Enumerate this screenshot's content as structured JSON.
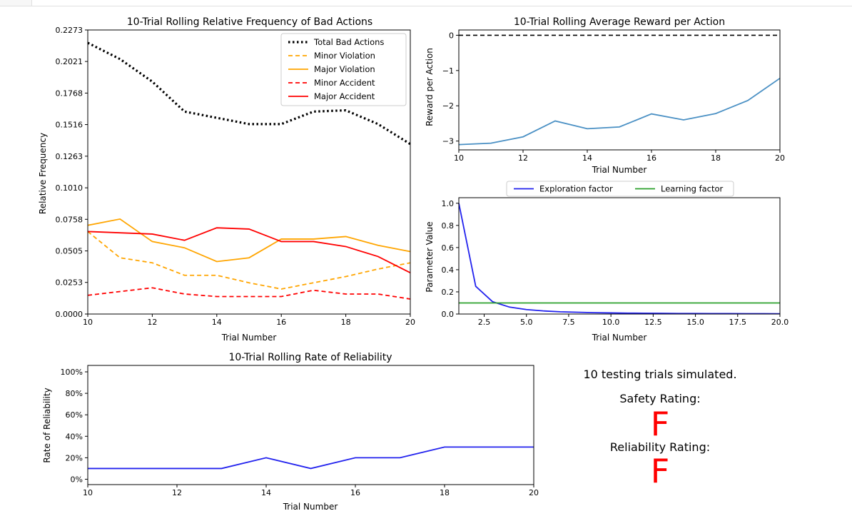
{
  "chart_data": [
    {
      "id": "bad-actions",
      "type": "line",
      "title": "10-Trial Rolling Relative Frequency of Bad Actions",
      "xlabel": "Trial Number",
      "ylabel": "Relative Frequency",
      "xlim": [
        10,
        20
      ],
      "ylim": [
        0,
        0.2273
      ],
      "xticks": [
        "10",
        "12",
        "14",
        "16",
        "18",
        "20"
      ],
      "xtick_values": [
        10,
        12,
        14,
        16,
        18,
        20
      ],
      "yticks": [
        "0.0000",
        "0.0253",
        "0.0505",
        "0.0758",
        "0.1010",
        "0.1263",
        "0.1516",
        "0.1768",
        "0.2021",
        "0.2273"
      ],
      "ytick_values": [
        0,
        0.0253,
        0.0505,
        0.0758,
        0.101,
        0.1263,
        0.1516,
        0.1768,
        0.2021,
        0.2273
      ],
      "legend_position": "top-right",
      "x": [
        10,
        11,
        12,
        13,
        14,
        15,
        16,
        17,
        18,
        19,
        20
      ],
      "series": [
        {
          "name": "Total Bad Actions",
          "color": "#000000",
          "style": "dotted",
          "values": [
            0.217,
            0.204,
            0.186,
            0.162,
            0.157,
            0.152,
            0.152,
            0.162,
            0.163,
            0.152,
            0.136
          ]
        },
        {
          "name": "Minor Violation",
          "color": "#ffa500",
          "style": "dashed",
          "values": [
            0.066,
            0.045,
            0.041,
            0.031,
            0.031,
            0.025,
            0.02,
            0.025,
            0.03,
            0.036,
            0.041
          ]
        },
        {
          "name": "Major Violation",
          "color": "#ffa500",
          "style": "solid",
          "values": [
            0.071,
            0.076,
            0.058,
            0.053,
            0.042,
            0.045,
            0.06,
            0.06,
            0.062,
            0.055,
            0.05
          ]
        },
        {
          "name": "Minor Accident",
          "color": "#ff0000",
          "style": "dashed",
          "values": [
            0.015,
            0.018,
            0.021,
            0.016,
            0.014,
            0.014,
            0.014,
            0.019,
            0.016,
            0.016,
            0.012
          ]
        },
        {
          "name": "Major Accident",
          "color": "#ff0000",
          "style": "solid",
          "values": [
            0.066,
            0.065,
            0.064,
            0.059,
            0.069,
            0.068,
            0.058,
            0.058,
            0.054,
            0.046,
            0.033
          ]
        }
      ]
    },
    {
      "id": "avg-reward",
      "type": "line",
      "title": "10-Trial Rolling Average Reward per Action",
      "xlabel": "Trial Number",
      "ylabel": "Reward per Action",
      "xlim": [
        10,
        20
      ],
      "ylim": [
        -3.25,
        0.15
      ],
      "xticks": [
        "10",
        "12",
        "14",
        "16",
        "18",
        "20"
      ],
      "xtick_values": [
        10,
        12,
        14,
        16,
        18,
        20
      ],
      "yticks": [
        "0",
        "−1",
        "−2",
        "−3"
      ],
      "ytick_values": [
        0,
        -1,
        -2,
        -3
      ],
      "reference_line": {
        "value": 0,
        "color": "#000000",
        "style": "dashed"
      },
      "x": [
        10,
        11,
        12,
        13,
        14,
        15,
        16,
        17,
        18,
        19,
        20
      ],
      "series": [
        {
          "color": "#4a90c4",
          "style": "solid",
          "values": [
            -3.1,
            -3.06,
            -2.88,
            -2.43,
            -2.65,
            -2.6,
            -2.23,
            -2.4,
            -2.22,
            -1.85,
            -1.22
          ]
        }
      ]
    },
    {
      "id": "parameters",
      "type": "line",
      "title": "",
      "xlabel": "Trial Number",
      "ylabel": "Parameter Value",
      "xlim": [
        1,
        20
      ],
      "ylim": [
        0,
        1.05
      ],
      "xticks": [
        "2.5",
        "5.0",
        "7.5",
        "10.0",
        "12.5",
        "15.0",
        "17.5",
        "20.0"
      ],
      "xtick_values": [
        2.5,
        5,
        7.5,
        10,
        12.5,
        15,
        17.5,
        20
      ],
      "yticks": [
        "0.0",
        "0.2",
        "0.4",
        "0.6",
        "0.8",
        "1.0"
      ],
      "ytick_values": [
        0,
        0.2,
        0.4,
        0.6,
        0.8,
        1.0
      ],
      "legend_position": "top-center",
      "x": [
        1,
        2,
        3,
        4,
        5,
        6,
        7,
        8,
        9,
        10,
        11,
        12,
        13,
        14,
        15,
        16,
        17,
        18,
        19,
        20
      ],
      "series": [
        {
          "name": "Exploration factor",
          "color": "#2222ee",
          "style": "solid",
          "values": [
            1.0,
            0.25,
            0.111,
            0.0625,
            0.04,
            0.028,
            0.02,
            0.016,
            0.012,
            0.01,
            0.008,
            0.007,
            0.006,
            0.005,
            0.0044,
            0.0039,
            0.0035,
            0.0031,
            0.0028,
            0.0025
          ]
        },
        {
          "name": "Learning factor",
          "color": "#2ca02c",
          "style": "solid",
          "values": [
            0.1,
            0.1,
            0.1,
            0.1,
            0.1,
            0.1,
            0.1,
            0.1,
            0.1,
            0.1,
            0.1,
            0.1,
            0.1,
            0.1,
            0.1,
            0.1,
            0.1,
            0.1,
            0.1,
            0.1
          ]
        }
      ]
    },
    {
      "id": "reliability",
      "type": "line",
      "title": "10-Trial Rolling Rate of Reliability",
      "xlabel": "Trial Number",
      "ylabel": "Rate of Reliability",
      "xlim": [
        10,
        20
      ],
      "ylim": [
        -5,
        106
      ],
      "xticks": [
        "10",
        "12",
        "14",
        "16",
        "18",
        "20"
      ],
      "xtick_values": [
        10,
        12,
        14,
        16,
        18,
        20
      ],
      "yticks": [
        "0%",
        "20%",
        "40%",
        "60%",
        "80%",
        "100%"
      ],
      "ytick_values": [
        0,
        20,
        40,
        60,
        80,
        100
      ],
      "x": [
        10,
        11,
        12,
        13,
        14,
        15,
        16,
        17,
        18,
        19,
        20
      ],
      "series": [
        {
          "color": "#2222ee",
          "style": "solid",
          "values": [
            10,
            10,
            10,
            10,
            20,
            10,
            20,
            20,
            30,
            30,
            30
          ]
        }
      ]
    }
  ],
  "summary": {
    "trials_text": "10 testing trials simulated.",
    "safety_label": "Safety Rating:",
    "safety_grade": "F",
    "reliability_label": "Reliability Rating:",
    "reliability_grade": "F",
    "grade_color": "#ff0000"
  }
}
